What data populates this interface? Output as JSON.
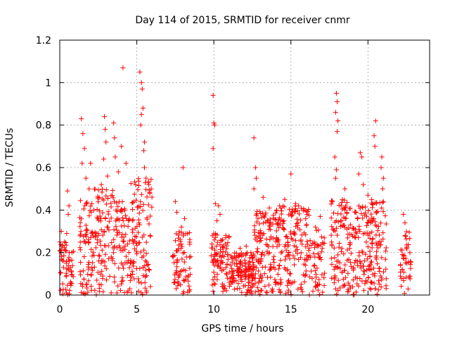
{
  "chart_data": {
    "type": "scatter",
    "title": "Day 114 of 2015, SRMTID for receiver cnmr",
    "xlabel": "GPS time / hours",
    "ylabel": "SRMTID / TECUs",
    "xlim": [
      0,
      24
    ],
    "ylim": [
      0,
      1.2
    ],
    "xticks": [
      0,
      5,
      10,
      15,
      20
    ],
    "xtick_labels": [
      "0",
      "5",
      "10",
      "15",
      "20"
    ],
    "yticks": [
      0,
      0.2,
      0.4,
      0.6,
      0.8,
      1.0,
      1.2
    ],
    "ytick_labels": [
      "0",
      "0.2",
      "0.4",
      "0.6",
      "0.8",
      "1",
      "1.2"
    ],
    "grid": true,
    "marker": "+",
    "series": [
      {
        "name": "SRMTID",
        "color": "#ff0000",
        "clusters": [
          {
            "x_range": [
              0.0,
              0.9
            ],
            "n": 60,
            "y_max": 0.25,
            "extra": [
              [
                0.1,
                0.3
              ],
              [
                0.3,
                0.25
              ],
              [
                0.5,
                0.49
              ],
              [
                0.6,
                0.42
              ],
              [
                0.55,
                0.38
              ],
              [
                0.45,
                0.29
              ]
            ]
          },
          {
            "x_range": [
              1.3,
              2.2
            ],
            "n": 75,
            "y_max": 0.45,
            "extra": [
              [
                1.4,
                0.83
              ],
              [
                1.5,
                0.76
              ],
              [
                1.6,
                0.69
              ],
              [
                1.45,
                0.62
              ],
              [
                1.7,
                0.55
              ],
              [
                1.9,
                0.5
              ],
              [
                2.0,
                0.62
              ]
            ]
          },
          {
            "x_range": [
              2.2,
              3.5
            ],
            "n": 95,
            "y_max": 0.5,
            "extra": [
              [
                2.9,
                0.84
              ],
              [
                2.95,
                0.78
              ],
              [
                3.0,
                0.72
              ],
              [
                2.85,
                0.64
              ],
              [
                3.1,
                0.56
              ],
              [
                2.7,
                0.52
              ]
            ]
          },
          {
            "x_range": [
              3.5,
              4.6
            ],
            "n": 80,
            "y_max": 0.45,
            "extra": [
              [
                3.5,
                0.81
              ],
              [
                3.55,
                0.74
              ],
              [
                3.6,
                0.65
              ],
              [
                4.1,
                1.07
              ],
              [
                4.0,
                0.7
              ],
              [
                4.3,
                0.62
              ],
              [
                3.8,
                0.58
              ]
            ]
          },
          {
            "x_range": [
              4.6,
              6.0
            ],
            "n": 110,
            "y_max": 0.55,
            "extra": [
              [
                5.2,
                1.05
              ],
              [
                5.3,
                1.0
              ],
              [
                5.35,
                0.97
              ],
              [
                5.4,
                0.88
              ],
              [
                5.3,
                0.85
              ],
              [
                5.25,
                0.8
              ],
              [
                5.5,
                0.72
              ],
              [
                5.45,
                0.68
              ],
              [
                5.5,
                0.6
              ],
              [
                5.6,
                0.55
              ]
            ]
          },
          {
            "x_range": [
              7.3,
              8.5
            ],
            "n": 75,
            "y_max": 0.3,
            "extra": [
              [
                7.5,
                0.44
              ],
              [
                7.6,
                0.39
              ],
              [
                8.0,
                0.6
              ],
              [
                8.1,
                0.36
              ],
              [
                7.9,
                0.32
              ]
            ]
          },
          {
            "x_range": [
              9.8,
              11.0
            ],
            "n": 90,
            "y_max": 0.3,
            "extra": [
              [
                9.95,
                0.94
              ],
              [
                10.0,
                0.81
              ],
              [
                10.05,
                0.8
              ],
              [
                9.95,
                0.69
              ],
              [
                10.1,
                0.43
              ],
              [
                10.3,
                0.42
              ],
              [
                10.4,
                0.38
              ],
              [
                10.2,
                0.35
              ]
            ]
          },
          {
            "x_range": [
              11.0,
              12.6
            ],
            "n": 140,
            "y_max": 0.2,
            "extra": [
              [
                12.1,
                0.23
              ],
              [
                11.7,
                0.22
              ],
              [
                12.4,
                0.2
              ]
            ]
          },
          {
            "x_range": [
              12.6,
              14.2
            ],
            "n": 140,
            "y_max": 0.4,
            "extra": [
              [
                12.6,
                0.74
              ],
              [
                12.7,
                0.6
              ],
              [
                12.75,
                0.55
              ],
              [
                12.6,
                0.5
              ],
              [
                13.2,
                0.46
              ],
              [
                13.6,
                0.41
              ]
            ]
          },
          {
            "x_range": [
              14.2,
              16.2
            ],
            "n": 150,
            "y_max": 0.42,
            "extra": [
              [
                15.0,
                0.57
              ],
              [
                15.3,
                0.43
              ],
              [
                15.5,
                0.42
              ],
              [
                14.6,
                0.45
              ]
            ]
          },
          {
            "x_range": [
              16.2,
              17.2
            ],
            "n": 55,
            "y_max": 0.32,
            "extra": [
              [
                16.9,
                0.37
              ]
            ]
          },
          {
            "x_range": [
              17.6,
              19.0
            ],
            "n": 110,
            "y_max": 0.45,
            "extra": [
              [
                17.95,
                0.95
              ],
              [
                18.0,
                0.91
              ],
              [
                17.9,
                0.86
              ],
              [
                18.05,
                0.82
              ],
              [
                18.0,
                0.77
              ],
              [
                17.85,
                0.65
              ],
              [
                17.95,
                0.59
              ],
              [
                17.9,
                0.55
              ],
              [
                18.5,
                0.5
              ]
            ]
          },
          {
            "x_range": [
              19.0,
              20.2
            ],
            "n": 95,
            "y_max": 0.42,
            "extra": [
              [
                19.5,
                0.67
              ],
              [
                19.6,
                0.65
              ],
              [
                19.4,
                0.57
              ],
              [
                19.7,
                0.52
              ],
              [
                20.0,
                0.47
              ]
            ]
          },
          {
            "x_range": [
              20.2,
              21.2
            ],
            "n": 85,
            "y_max": 0.45,
            "extra": [
              [
                20.5,
                0.82
              ],
              [
                20.4,
                0.75
              ],
              [
                20.45,
                0.7
              ],
              [
                20.9,
                0.65
              ],
              [
                20.85,
                0.6
              ],
              [
                21.0,
                0.55
              ],
              [
                20.95,
                0.5
              ]
            ]
          },
          {
            "x_range": [
              22.1,
              22.8
            ],
            "n": 45,
            "y_max": 0.3,
            "extra": [
              [
                22.3,
                0.38
              ],
              [
                22.4,
                0.34
              ]
            ]
          }
        ]
      }
    ]
  }
}
